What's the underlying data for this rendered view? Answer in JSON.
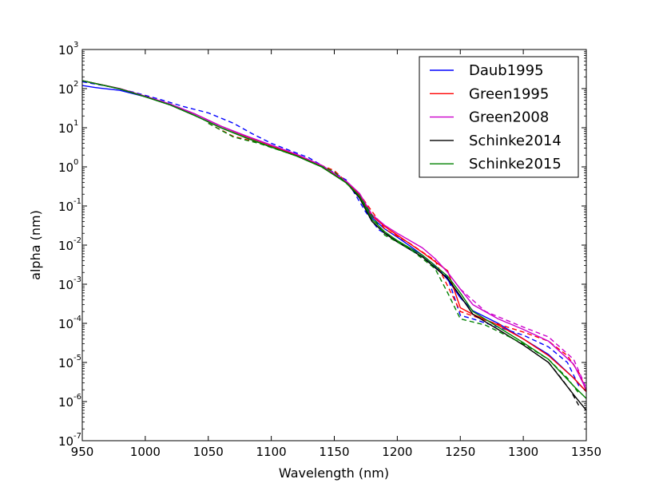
{
  "chart_data": {
    "type": "line",
    "title": "",
    "xlabel": "Wavelength (nm)",
    "ylabel": "alpha (nm)",
    "xlim": [
      950,
      1350
    ],
    "ylim": [
      1e-07,
      1000
    ],
    "yscale": "log",
    "grid": false,
    "legend_position": "top-right",
    "x_ticks": [
      950,
      1000,
      1050,
      1100,
      1150,
      1200,
      1250,
      1300,
      1350
    ],
    "x_tick_labels": [
      "950",
      "1000",
      "1050",
      "1100",
      "1150",
      "1200",
      "1250",
      "1300",
      "1350"
    ],
    "y_ticks": [
      {
        "value": 1e-07,
        "base": "10",
        "exp": "-7"
      },
      {
        "value": 1e-06,
        "base": "10",
        "exp": "-6"
      },
      {
        "value": 1e-05,
        "base": "10",
        "exp": "-5"
      },
      {
        "value": 0.0001,
        "base": "10",
        "exp": "-4"
      },
      {
        "value": 0.001,
        "base": "10",
        "exp": "-3"
      },
      {
        "value": 0.01,
        "base": "10",
        "exp": "-2"
      },
      {
        "value": 0.1,
        "base": "10",
        "exp": "-1"
      },
      {
        "value": 1,
        "base": "10",
        "exp": "0"
      },
      {
        "value": 10,
        "base": "10",
        "exp": "1"
      },
      {
        "value": 100,
        "base": "10",
        "exp": "2"
      },
      {
        "value": 1000,
        "base": "10",
        "exp": "3"
      }
    ],
    "series": [
      {
        "name": "Daub1995",
        "color": "#0000ff",
        "dash": false,
        "x": [
          950,
          960,
          980,
          1000,
          1020,
          1040,
          1060,
          1080,
          1100,
          1120,
          1140,
          1160,
          1170,
          1180,
          1190,
          1200,
          1210,
          1220,
          1230,
          1240,
          1250,
          1260,
          1280,
          1300,
          1320,
          1340,
          1350
        ],
        "y": [
          120,
          107,
          90,
          62,
          40,
          22,
          11,
          6,
          3.5,
          2,
          1.05,
          0.4,
          0.19,
          0.05,
          0.026,
          0.016,
          0.0095,
          0.0055,
          0.003,
          0.0013,
          0.00045,
          0.00021,
          0.0001,
          4e-05,
          1.6e-05,
          4e-06,
          1.8e-06
        ]
      },
      {
        "name": "Daub1995",
        "color": "#0000ff",
        "dash": true,
        "x": [
          950,
          970,
          990,
          1010,
          1030,
          1050,
          1070,
          1085,
          1100,
          1130,
          1160,
          1175,
          1185,
          1200,
          1220,
          1240,
          1250,
          1260,
          1280,
          1300,
          1320,
          1335,
          1345
        ],
        "y": [
          150,
          115,
          82,
          55,
          35,
          24,
          13,
          7,
          4,
          1.7,
          0.45,
          0.07,
          0.025,
          0.013,
          0.005,
          0.0015,
          0.00016,
          0.00013,
          8e-05,
          5e-05,
          2.5e-05,
          1e-05,
          2.2e-06
        ]
      },
      {
        "name": "Green1995",
        "color": "#ff0000",
        "dash": false,
        "x": [
          950,
          980,
          1000,
          1020,
          1040,
          1060,
          1080,
          1100,
          1120,
          1140,
          1160,
          1170,
          1180,
          1190,
          1200,
          1220,
          1240,
          1250,
          1260,
          1280,
          1300,
          1320,
          1340,
          1350
        ],
        "y": [
          160,
          100,
          64,
          40,
          22,
          11,
          6,
          3.5,
          2,
          1.05,
          0.4,
          0.2,
          0.055,
          0.03,
          0.018,
          0.0065,
          0.0022,
          0.00025,
          0.00017,
          9e-05,
          4e-05,
          1.5e-05,
          4e-06,
          1.8e-06
        ]
      },
      {
        "name": "Green1995",
        "color": "#ff0000",
        "dash": true,
        "x": [
          1050,
          1070,
          1090,
          1120,
          1150,
          1170,
          1190,
          1210,
          1230,
          1250,
          1270,
          1300,
          1320,
          1335,
          1345,
          1350
        ],
        "y": [
          13,
          6,
          4.2,
          2,
          0.8,
          0.2,
          0.026,
          0.011,
          0.004,
          0.0002,
          0.00012,
          6e-05,
          3.5e-05,
          1.5e-05,
          5e-06,
          1.8e-06
        ]
      },
      {
        "name": "Green2008",
        "color": "#cc00cc",
        "dash": false,
        "x": [
          950,
          980,
          1000,
          1020,
          1040,
          1060,
          1080,
          1100,
          1120,
          1140,
          1160,
          1170,
          1180,
          1190,
          1200,
          1210,
          1220,
          1230,
          1240,
          1250,
          1260,
          1280,
          1300,
          1320,
          1340,
          1350
        ],
        "y": [
          160,
          100,
          64,
          40,
          22,
          11,
          6.2,
          3.6,
          2.1,
          1.1,
          0.42,
          0.21,
          0.06,
          0.032,
          0.02,
          0.013,
          0.0085,
          0.0045,
          0.002,
          0.00075,
          0.0003,
          0.00013,
          7e-05,
          3.5e-05,
          9e-06,
          2e-06
        ]
      },
      {
        "name": "Green2008",
        "color": "#cc00cc",
        "dash": true,
        "x": [
          1250,
          1270,
          1300,
          1320,
          1340,
          1350
        ],
        "y": [
          0.00075,
          0.0002,
          8e-05,
          4.5e-05,
          1.2e-05,
          2.2e-06
        ]
      },
      {
        "name": "Schinke2014",
        "color": "#000000",
        "dash": false,
        "x": [
          950,
          980,
          1000,
          1020,
          1040,
          1060,
          1080,
          1100,
          1120,
          1140,
          1160,
          1170,
          1180,
          1190,
          1200,
          1220,
          1240,
          1250,
          1260,
          1280,
          1300,
          1320,
          1340,
          1350
        ],
        "y": [
          160,
          98,
          62,
          38,
          20,
          10,
          5.5,
          3.2,
          1.9,
          1,
          0.38,
          0.16,
          0.04,
          0.02,
          0.012,
          0.005,
          0.0014,
          0.0005,
          0.00017,
          7e-05,
          2.8e-05,
          1e-05,
          1.5e-06,
          6e-07
        ]
      },
      {
        "name": "Schinke2014",
        "color": "#000000",
        "dash": true,
        "x": [
          1320,
          1330,
          1338,
          1344
        ],
        "y": [
          1e-05,
          4e-06,
          1.8e-06,
          8e-07
        ]
      },
      {
        "name": "Schinke2015",
        "color": "#008000",
        "dash": false,
        "x": [
          950,
          980,
          1000,
          1020,
          1040,
          1060,
          1080,
          1100,
          1120,
          1140,
          1160,
          1170,
          1180,
          1190,
          1200,
          1220,
          1240,
          1250,
          1260,
          1280,
          1300,
          1320,
          1340,
          1350
        ],
        "y": [
          160,
          98,
          62,
          38,
          20,
          10,
          5.5,
          3.2,
          1.9,
          1,
          0.38,
          0.18,
          0.045,
          0.022,
          0.013,
          0.0055,
          0.0016,
          0.0006,
          0.0002,
          8e-05,
          3.2e-05,
          1.2e-05,
          2.5e-06,
          1.2e-06
        ]
      },
      {
        "name": "Schinke2015",
        "color": "#008000",
        "dash": true,
        "x": [
          1050,
          1070,
          1090,
          1120,
          1150,
          1170,
          1190,
          1210,
          1230,
          1240,
          1250,
          1270,
          1300,
          1320,
          1335,
          1345
        ],
        "y": [
          13,
          5.8,
          4,
          1.9,
          0.75,
          0.18,
          0.018,
          0.008,
          0.0025,
          0.0006,
          0.00013,
          9e-05,
          3e-05,
          1.2e-05,
          4e-06,
          1.5e-06
        ]
      }
    ],
    "legend": [
      {
        "label": "Daub1995",
        "color": "#0000ff"
      },
      {
        "label": "Green1995",
        "color": "#ff0000"
      },
      {
        "label": "Green2008",
        "color": "#cc00cc"
      },
      {
        "label": "Schinke2014",
        "color": "#000000"
      },
      {
        "label": "Schinke2015",
        "color": "#008000"
      }
    ]
  }
}
